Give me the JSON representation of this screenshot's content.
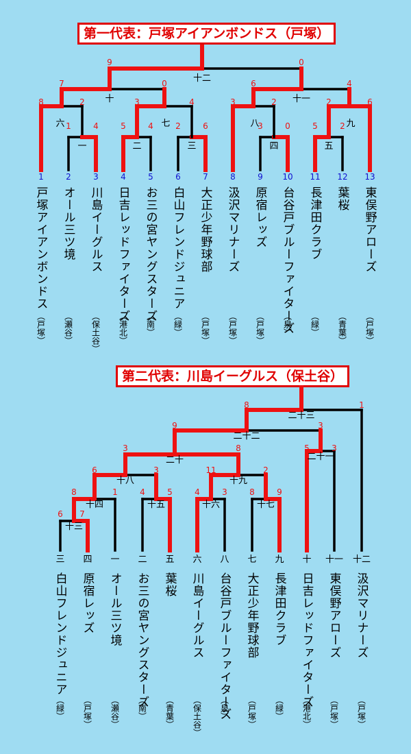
{
  "bracket1": {
    "title": "第一代表：戸塚アイアンボンドス（戸塚）",
    "seeds": [
      "1",
      "2",
      "3",
      "4",
      "5",
      "6",
      "7",
      "8",
      "9",
      "10",
      "11",
      "12",
      "13"
    ],
    "teams": [
      {
        "name": "戸塚アイアンボンドス",
        "area": "（戸塚）"
      },
      {
        "name": "オール三ツ境",
        "area": "（瀬谷）"
      },
      {
        "name": "川島イーグルス",
        "area": "（保土谷）"
      },
      {
        "name": "日吉レッドファイターズ",
        "area": "（港北）"
      },
      {
        "name": "お三の宮ヤングスターズ",
        "area": "（南）"
      },
      {
        "name": "白山フレンドジュニア",
        "area": "（緑）"
      },
      {
        "name": "大正少年野球部",
        "area": "（戸塚）"
      },
      {
        "name": "汲沢マリナーズ",
        "area": "（戸塚）"
      },
      {
        "name": "原宿レッズ",
        "area": "（戸塚）"
      },
      {
        "name": "台谷戸ブルーファイターズ",
        "area": "（泉）"
      },
      {
        "name": "長津田クラブ",
        "area": "（緑）"
      },
      {
        "name": "葉桜",
        "area": "（青葉）"
      },
      {
        "name": "東俣野アローズ",
        "area": "（戸塚）"
      }
    ],
    "game_labels": [
      "一",
      "二",
      "三",
      "四",
      "五",
      "六",
      "七",
      "八",
      "九",
      "十",
      "十一",
      "十二"
    ],
    "scores": [
      "1",
      "4",
      "5",
      "4",
      "2",
      "6",
      "3",
      "0",
      "5",
      "2",
      "8",
      "2",
      "3",
      "4",
      "3",
      "2",
      "2",
      "6",
      "7",
      "0",
      "6",
      "4",
      "9",
      "0"
    ]
  },
  "bracket2": {
    "title": "第二代表：川島イーグルス（保土谷）",
    "seeds": [
      "三",
      "四",
      "一",
      "二",
      "五",
      "六",
      "八",
      "七",
      "九",
      "十",
      "十一",
      "十二"
    ],
    "teams": [
      {
        "name": "白山フレンドジュニア",
        "area": "（緑）"
      },
      {
        "name": "原宿レッズ",
        "area": "（戸塚）"
      },
      {
        "name": "オール三ツ境",
        "area": "（瀬谷）"
      },
      {
        "name": "お三の宮ヤングスターズ",
        "area": "（南）"
      },
      {
        "name": "葉桜",
        "area": "（青葉）"
      },
      {
        "name": "川島イーグルス",
        "area": "（保土谷）"
      },
      {
        "name": "台谷戸ブルーファイターズ",
        "area": "（泉）"
      },
      {
        "name": "大正少年野球部",
        "area": "（戸塚）"
      },
      {
        "name": "長津田クラブ",
        "area": "（緑）"
      },
      {
        "name": "日吉レッドファイターズ",
        "area": "（港北）"
      },
      {
        "name": "東俣野アローズ",
        "area": "（戸塚）"
      },
      {
        "name": "汲沢マリナーズ",
        "area": "（戸塚）"
      }
    ],
    "game_labels": [
      "十三",
      "十四",
      "十五",
      "十六",
      "十七",
      "十八",
      "十九",
      "二十",
      "二十一",
      "二十二",
      "二十三"
    ],
    "scores": [
      "6",
      "7",
      "8",
      "1",
      "4",
      "5",
      "4",
      "3",
      "8",
      "9",
      "6",
      "3",
      "11",
      "2",
      "3",
      "8",
      "5",
      "3",
      "9",
      "3",
      "8",
      "1"
    ]
  }
}
